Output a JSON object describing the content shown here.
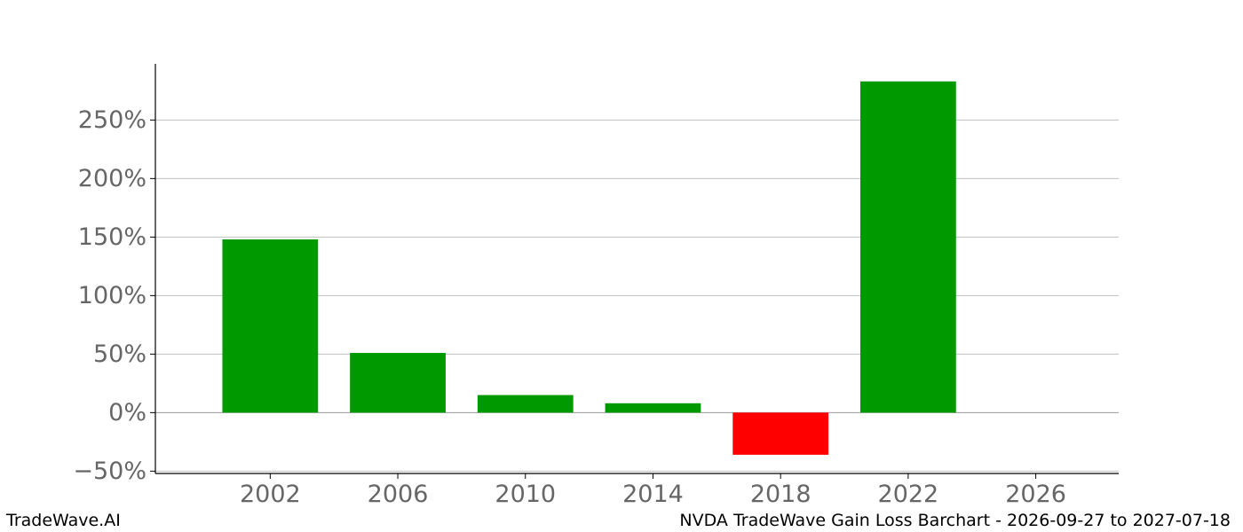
{
  "footer": {
    "brand": "TradeWave.AI",
    "caption": "NVDA TradeWave Gain Loss Barchart - 2026-09-27 to 2027-07-18"
  },
  "chart_data": {
    "type": "bar",
    "title": "",
    "xlabel": "",
    "ylabel": "",
    "x": [
      2002,
      2006,
      2010,
      2014,
      2018,
      2022
    ],
    "values": [
      148,
      51,
      15,
      8,
      -36,
      283
    ],
    "unit": "%",
    "xlim": [
      1998.4,
      2028.6
    ],
    "ylim": [
      -52,
      298
    ],
    "xticks": [
      2002,
      2006,
      2010,
      2014,
      2018,
      2022,
      2026
    ],
    "xtick_labels": [
      "2002",
      "2006",
      "2010",
      "2014",
      "2018",
      "2022",
      "2026"
    ],
    "yticks": [
      -50,
      0,
      50,
      100,
      150,
      200,
      250
    ],
    "ytick_labels": [
      "−50%",
      "0%",
      "50%",
      "100%",
      "150%",
      "200%",
      "250%"
    ],
    "bar_width_years": 3,
    "grid": "horizontal",
    "legend": "none",
    "colors": {
      "gain": "#009900",
      "loss": "#ff0000",
      "grid": "#c0c0c0",
      "zero_line": "#999999"
    }
  }
}
